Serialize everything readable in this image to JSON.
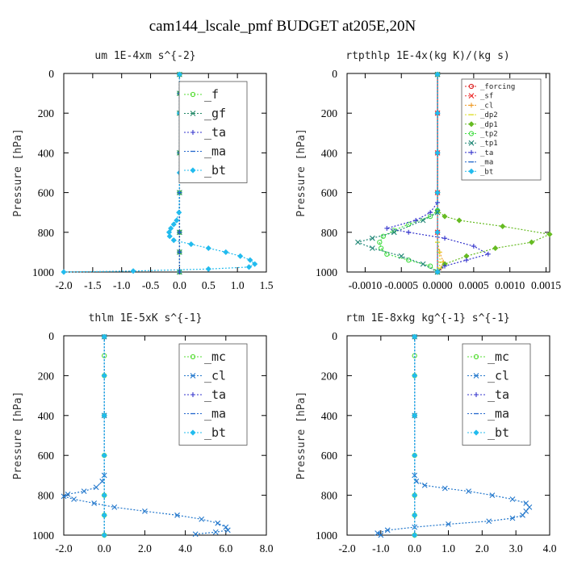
{
  "suptitle": "cam144_lscale_pmf  BUDGET at205E,20N",
  "chart_data": [
    {
      "type": "line",
      "title": "um  1E-4xm s^{-2}",
      "xlabel": "",
      "ylabel": "Pressure [hPa]",
      "xlim": [
        -2.0,
        1.5
      ],
      "ylim": [
        1000,
        0
      ],
      "x_ticks": [
        "-2.0",
        "-1.5",
        "-1.0",
        "-0.5",
        "0.0",
        "0.5",
        "1.0",
        "1.5"
      ],
      "y_ticks": [
        "0",
        "200",
        "400",
        "600",
        "800",
        "1000"
      ],
      "legend_position": "top-right",
      "legend_style": "large",
      "series": [
        {
          "name": "_f",
          "color": "#55dd33",
          "marker": "circle",
          "dash": "2,2",
          "x": [
            0,
            0,
            0,
            0,
            0,
            0,
            0,
            0
          ],
          "y": [
            5,
            100,
            200,
            400,
            600,
            800,
            900,
            1000
          ]
        },
        {
          "name": "_gf",
          "color": "#228866",
          "marker": "x",
          "dash": "2,2",
          "x": [
            0,
            0,
            0,
            0,
            0,
            0,
            0,
            0
          ],
          "y": [
            5,
            100,
            200,
            400,
            600,
            800,
            900,
            1000
          ]
        },
        {
          "name": "_ta",
          "color": "#3333cc",
          "marker": "plus",
          "dash": "2,2",
          "x": [
            0,
            0,
            0,
            0,
            0,
            0,
            0,
            0
          ],
          "y": [
            5,
            100,
            200,
            400,
            600,
            800,
            900,
            1000
          ]
        },
        {
          "name": "_ma",
          "color": "#2266cc",
          "marker": "dash",
          "dash": "2,2",
          "x": [
            0,
            0,
            0,
            0,
            0,
            0,
            0,
            0
          ],
          "y": [
            5,
            100,
            200,
            400,
            600,
            800,
            900,
            1000
          ]
        },
        {
          "name": "_bt",
          "color": "#22bbee",
          "marker": "diamond",
          "dash": "2,2",
          "x": [
            0,
            0,
            0,
            -0.01,
            -0.05,
            -0.1,
            -0.15,
            -0.18,
            -0.17,
            -0.1,
            0.2,
            0.5,
            0.8,
            1.05,
            1.22,
            1.3,
            1.2,
            0.5,
            -0.8,
            -2.0
          ],
          "y": [
            5,
            200,
            500,
            700,
            740,
            760,
            780,
            800,
            820,
            840,
            860,
            880,
            900,
            920,
            940,
            960,
            975,
            985,
            995,
            1000
          ]
        }
      ]
    },
    {
      "type": "line",
      "title": "rtpthlp  1E-4x(kg K)/(kg s)",
      "xlabel": "",
      "ylabel": "Pressure [hPa]",
      "xlim": [
        -0.00125,
        0.00155
      ],
      "ylim": [
        1000,
        0
      ],
      "x_ticks": [
        "-0.0010",
        "-0.0005",
        "0.0000",
        "0.0005",
        "0.0010",
        "0.0015"
      ],
      "x_tick_values": [
        -0.001,
        -0.0005,
        0,
        0.0005,
        0.001,
        0.0015
      ],
      "y_ticks": [
        "0",
        "200",
        "400",
        "600",
        "800",
        "1000"
      ],
      "legend_position": "top-right",
      "legend_style": "small",
      "series": [
        {
          "name": "_forcing",
          "color": "#dd2222",
          "marker": "circle",
          "dash": "",
          "x": [
            0,
            0,
            0,
            0,
            0,
            0
          ],
          "y": [
            5,
            200,
            400,
            600,
            800,
            1000
          ]
        },
        {
          "name": "_sf",
          "color": "#ee3333",
          "marker": "x",
          "dash": "2,2",
          "x": [
            0,
            0,
            0,
            0,
            0,
            0
          ],
          "y": [
            5,
            200,
            400,
            600,
            800,
            1000
          ]
        },
        {
          "name": "_cl",
          "color": "#ee9922",
          "marker": "plus",
          "dash": "2,2",
          "x": [
            0,
            0,
            0,
            0,
            3e-05,
            8e-05,
            5e-05,
            0
          ],
          "y": [
            5,
            400,
            700,
            850,
            900,
            950,
            980,
            1000
          ]
        },
        {
          "name": "_dp2",
          "color": "#dddd22",
          "marker": "dash",
          "dash": "2,2",
          "x": [
            0,
            0,
            0,
            0,
            2e-05,
            4e-05,
            2e-05,
            0
          ],
          "y": [
            5,
            400,
            700,
            850,
            900,
            950,
            980,
            1000
          ]
        },
        {
          "name": "_dp1",
          "color": "#66bb22",
          "marker": "diamond",
          "dash": "2,2",
          "x": [
            0,
            0,
            0,
            0.0001,
            0.0003,
            0.0009,
            0.00155,
            0.0013,
            0.0008,
            0.0004,
            0.0001,
            0
          ],
          "y": [
            5,
            600,
            690,
            720,
            740,
            770,
            810,
            850,
            880,
            920,
            960,
            1000
          ]
        },
        {
          "name": "_tp2",
          "color": "#44dd44",
          "marker": "circle",
          "dash": "2,2",
          "x": [
            0,
            0,
            -0.0001,
            -0.0004,
            -0.0006,
            -0.00075,
            -0.0008,
            -0.00078,
            -0.0007,
            -0.0004,
            -0.0001,
            0
          ],
          "y": [
            5,
            690,
            720,
            760,
            790,
            820,
            850,
            880,
            910,
            940,
            970,
            1000
          ]
        },
        {
          "name": "_tp1",
          "color": "#228877",
          "marker": "x",
          "dash": "2,2",
          "x": [
            0,
            0,
            -0.0002,
            -0.0006,
            -0.0009,
            -0.0011,
            -0.0009,
            -0.0005,
            -0.0002,
            0
          ],
          "y": [
            5,
            700,
            740,
            800,
            830,
            850,
            880,
            920,
            960,
            1000
          ]
        },
        {
          "name": "_ta",
          "color": "#3333cc",
          "marker": "plus",
          "dash": "2,2",
          "x": [
            0,
            0,
            -0.0001,
            -0.0003,
            -0.0007,
            -0.0004,
            0.0001,
            0.0005,
            0.0007,
            0.0004,
            0.0001,
            0
          ],
          "y": [
            5,
            650,
            700,
            740,
            780,
            800,
            830,
            870,
            910,
            940,
            970,
            1000
          ]
        },
        {
          "name": "_ma",
          "color": "#2266cc",
          "marker": "dash",
          "dash": "2,2",
          "x": [
            0,
            0,
            0,
            0,
            0,
            0
          ],
          "y": [
            5,
            200,
            400,
            600,
            800,
            1000
          ]
        },
        {
          "name": "_bt",
          "color": "#22bbee",
          "marker": "diamond",
          "dash": "2,2",
          "x": [
            0,
            0,
            0,
            0,
            0,
            0
          ],
          "y": [
            5,
            200,
            400,
            600,
            800,
            1000
          ]
        }
      ]
    },
    {
      "type": "line",
      "title": "thlm  1E-5xK s^{-1}",
      "xlabel": "",
      "ylabel": "Pressure [hPa]",
      "xlim": [
        -2.0,
        8.0
      ],
      "ylim": [
        1000,
        0
      ],
      "x_ticks": [
        "-2.0",
        "0.0",
        "2.0",
        "4.0",
        "6.0",
        "8.0"
      ],
      "y_ticks": [
        "0",
        "200",
        "400",
        "600",
        "800",
        "1000"
      ],
      "legend_position": "top-right",
      "legend_style": "large",
      "series": [
        {
          "name": "_mc",
          "color": "#55dd33",
          "marker": "circle",
          "dash": "2,2",
          "x": [
            0,
            0,
            0,
            0,
            0,
            0,
            0,
            0
          ],
          "y": [
            5,
            100,
            200,
            400,
            600,
            800,
            900,
            1000
          ]
        },
        {
          "name": "_cl",
          "color": "#2277cc",
          "marker": "x",
          "dash": "2,2",
          "x": [
            0,
            0,
            0,
            -0.1,
            -0.4,
            -1.0,
            -1.8,
            -2.0,
            -1.5,
            -0.5,
            0.5,
            2.0,
            3.6,
            4.8,
            5.6,
            6.0,
            6.1,
            5.5,
            4.5
          ],
          "y": [
            5,
            400,
            700,
            730,
            760,
            780,
            795,
            805,
            820,
            840,
            860,
            880,
            900,
            920,
            940,
            960,
            975,
            985,
            995
          ]
        },
        {
          "name": "_ta",
          "color": "#3333cc",
          "marker": "plus",
          "dash": "2,2",
          "x": [
            0,
            0,
            0,
            0,
            0,
            0,
            0
          ],
          "y": [
            5,
            200,
            400,
            600,
            800,
            900,
            1000
          ]
        },
        {
          "name": "_ma",
          "color": "#2266cc",
          "marker": "dash",
          "dash": "2,2",
          "x": [
            0,
            0,
            0,
            0,
            0,
            0,
            0
          ],
          "y": [
            5,
            200,
            400,
            600,
            800,
            900,
            1000
          ]
        },
        {
          "name": "_bt",
          "color": "#22bbee",
          "marker": "diamond",
          "dash": "2,2",
          "x": [
            0,
            0,
            0,
            0,
            0,
            0,
            0
          ],
          "y": [
            5,
            200,
            400,
            600,
            800,
            900,
            1000
          ]
        }
      ]
    },
    {
      "type": "line",
      "title": "rtm  1E-8xkg kg^{-1} s^{-1}",
      "xlabel": "",
      "ylabel": "Pressure [hPa]",
      "xlim": [
        -2.0,
        4.0
      ],
      "ylim": [
        1000,
        0
      ],
      "x_ticks": [
        "-2.0",
        "-1.0",
        "0.0",
        "1.0",
        "2.0",
        "3.0",
        "4.0"
      ],
      "y_ticks": [
        "0",
        "200",
        "400",
        "600",
        "800",
        "1000"
      ],
      "legend_position": "top-right",
      "legend_style": "large",
      "series": [
        {
          "name": "_mc",
          "color": "#55dd33",
          "marker": "circle",
          "dash": "2,2",
          "x": [
            0,
            0,
            0,
            0,
            0,
            0,
            0,
            0
          ],
          "y": [
            5,
            100,
            200,
            400,
            600,
            800,
            900,
            1000
          ]
        },
        {
          "name": "_cl",
          "color": "#2277cc",
          "marker": "x",
          "dash": "2,2",
          "x": [
            0,
            0,
            0,
            0.05,
            0.3,
            0.9,
            1.6,
            2.3,
            2.9,
            3.3,
            3.4,
            3.3,
            3.2,
            2.9,
            2.2,
            1.0,
            0.0,
            -0.8,
            -1.1,
            -1.0
          ],
          "y": [
            5,
            400,
            700,
            730,
            750,
            765,
            780,
            800,
            820,
            840,
            860,
            880,
            900,
            915,
            930,
            945,
            960,
            975,
            990,
            1000
          ]
        },
        {
          "name": "_ta",
          "color": "#3333cc",
          "marker": "plus",
          "dash": "2,2",
          "x": [
            0,
            0,
            0,
            0,
            0,
            0,
            0
          ],
          "y": [
            5,
            200,
            400,
            600,
            800,
            900,
            1000
          ]
        },
        {
          "name": "_ma",
          "color": "#2266cc",
          "marker": "dash",
          "dash": "2,2",
          "x": [
            0,
            0,
            0,
            0,
            0,
            0,
            0
          ],
          "y": [
            5,
            200,
            400,
            600,
            800,
            900,
            1000
          ]
        },
        {
          "name": "_bt",
          "color": "#22bbee",
          "marker": "diamond",
          "dash": "2,2",
          "x": [
            0,
            0,
            0,
            0,
            0,
            0,
            0
          ],
          "y": [
            5,
            200,
            400,
            600,
            800,
            900,
            1000
          ]
        }
      ]
    }
  ]
}
